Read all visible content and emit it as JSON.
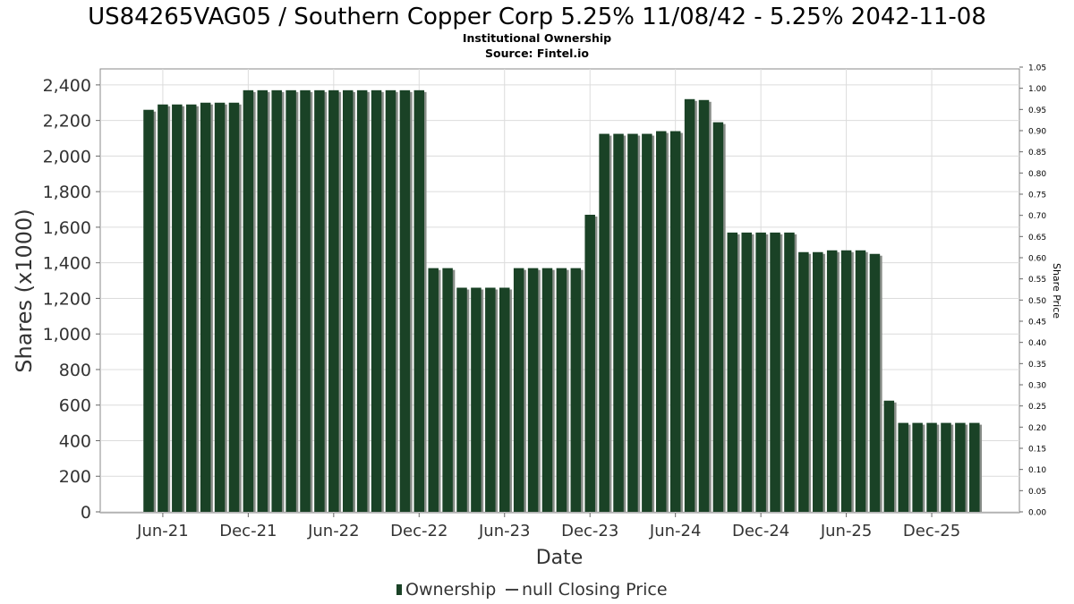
{
  "chart_data": {
    "type": "bar",
    "title": "US84265VAG05 / Southern Copper Corp 5.25% 11/08/42 - 5.25% 2042-11-08",
    "subtitle": "Institutional Ownership",
    "source": "Source: Fintel.io",
    "xlabel": "Date",
    "ylabel": "Shares (x1000)",
    "y2label": "Share Price",
    "ylim": [
      0,
      2500
    ],
    "y2lim": [
      0,
      1.05
    ],
    "grid": true,
    "yticks": [
      0,
      200,
      400,
      600,
      800,
      1000,
      1200,
      1400,
      1600,
      1800,
      2000,
      2200,
      2400
    ],
    "ytick_labels": [
      "0",
      "200",
      "400",
      "600",
      "800",
      "1,000",
      "1,200",
      "1,400",
      "1,600",
      "1,800",
      "2,000",
      "2,200",
      "2,400"
    ],
    "y2ticks": [
      0,
      0.05,
      0.1,
      0.15,
      0.2,
      0.25,
      0.3,
      0.35,
      0.4,
      0.45,
      0.5,
      0.55,
      0.6,
      0.65,
      0.7,
      0.75,
      0.8,
      0.85,
      0.9,
      0.95,
      1.0,
      1.05
    ],
    "y2tick_labels": [
      "0.00",
      "0.05",
      "0.10",
      "0.15",
      "0.20",
      "0.25",
      "0.30",
      "0.35",
      "0.40",
      "0.45",
      "0.50",
      "0.55",
      "0.60",
      "0.65",
      "0.70",
      "0.75",
      "0.80",
      "0.85",
      "0.90",
      "0.95",
      "1.00",
      "1.05"
    ],
    "xtick_labels": [
      "Jun-21",
      "Dec-21",
      "Jun-22",
      "Dec-22",
      "Jun-23",
      "Dec-23",
      "Jun-24",
      "Dec-24",
      "Jun-25",
      "Dec-25"
    ],
    "legend": {
      "position": "bottom-center",
      "entries": [
        {
          "label": "Ownership",
          "color": "#1a4226",
          "kind": "bar"
        },
        {
          "label": "null Closing Price",
          "color": "#444444",
          "kind": "line"
        }
      ]
    },
    "series": [
      {
        "name": "Ownership",
        "color": "#1a4226",
        "values": [
          2260,
          2290,
          2290,
          2290,
          2300,
          2300,
          2300,
          2370,
          2370,
          2370,
          2370,
          2370,
          2370,
          2370,
          2370,
          2370,
          2370,
          2370,
          2370,
          2370,
          1370,
          1370,
          1260,
          1260,
          1260,
          1260,
          1370,
          1370,
          1370,
          1370,
          1370,
          1670,
          2125,
          2125,
          2125,
          2125,
          2140,
          2140,
          2320,
          2315,
          2190,
          1570,
          1570,
          1570,
          1570,
          1570,
          1460,
          1460,
          1470,
          1470,
          1470,
          1450,
          625,
          500,
          500,
          500,
          500,
          500,
          500
        ]
      }
    ]
  },
  "colors": {
    "bar": "#1a4226",
    "bar_shadow": "#888d88",
    "grid": "#dcdcdc",
    "frame": "#8a8a8a",
    "axis_text": "#333333"
  }
}
